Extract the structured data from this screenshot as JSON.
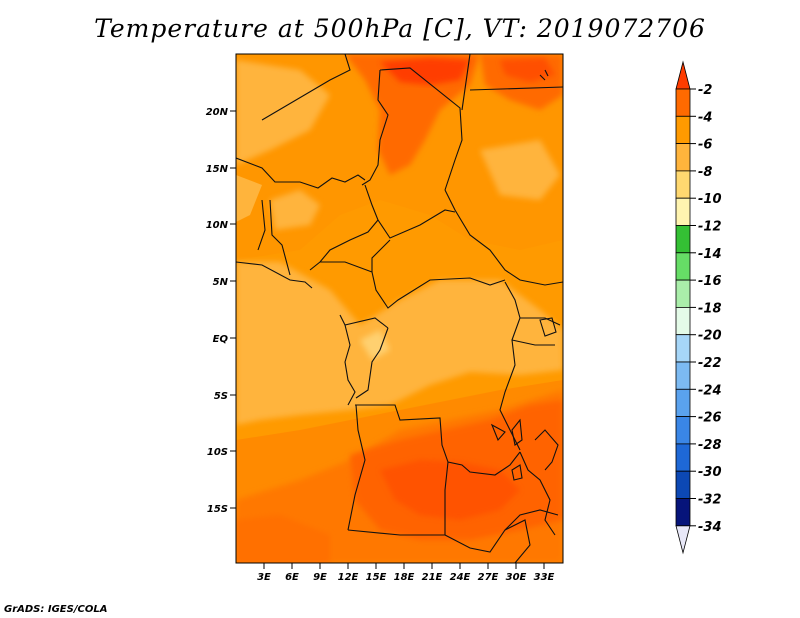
{
  "title": "Temperature at 500hPa [C], VT: 2019072706",
  "credit": "GrADS: IGES/COLA",
  "map": {
    "lat_ticks": [
      "20N",
      "15N",
      "10N",
      "5N",
      "EQ",
      "5S",
      "10S",
      "15S"
    ],
    "lon_ticks": [
      "3E",
      "6E",
      "9E",
      "12E",
      "15E",
      "18E",
      "21E",
      "24E",
      "27E",
      "30E",
      "33E"
    ]
  },
  "colorbar": {
    "labels": [
      "-2",
      "-4",
      "-6",
      "-8",
      "-10",
      "-12",
      "-14",
      "-16",
      "-18",
      "-20",
      "-22",
      "-24",
      "-26",
      "-28",
      "-30",
      "-32",
      "-34"
    ],
    "colors": [
      "#ff3c00",
      "#ff6a00",
      "#ff9a00",
      "#ffb43c",
      "#ffd870",
      "#fff4b0",
      "#34c034",
      "#66dd66",
      "#aaeeaa",
      "#e4fbe8",
      "#a6d6f8",
      "#7cbaf2",
      "#5aa2ee",
      "#3a86e6",
      "#1e68d6",
      "#0c48b4",
      "#06147a",
      "#e8e8f8"
    ]
  }
}
